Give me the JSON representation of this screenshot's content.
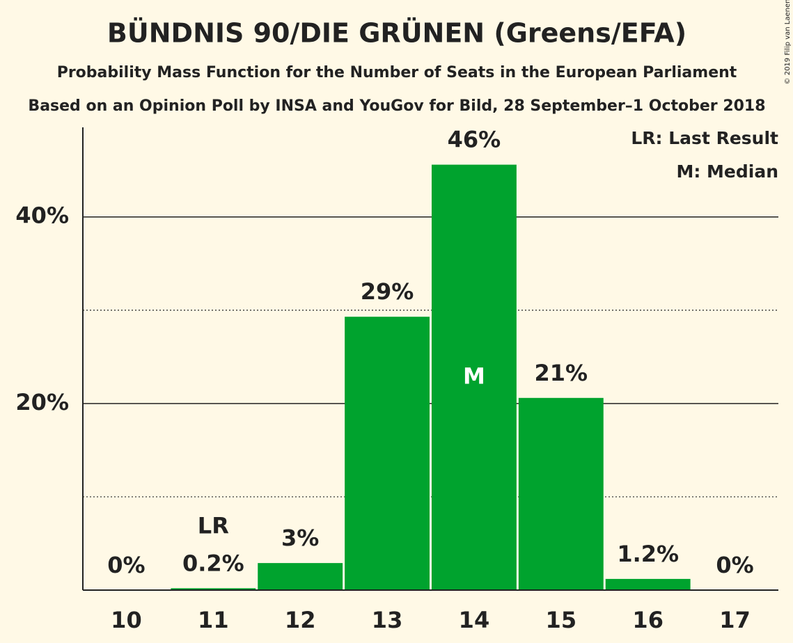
{
  "chart_data": {
    "type": "bar",
    "title": "BÜNDNIS 90/DIE GRÜNEN (Greens/EFA)",
    "subtitle": "Probability Mass Function for the Number of Seats in the European Parliament",
    "subtitle2": "Based on an Opinion Poll by INSA and YouGov for Bild, 28 September–1 October 2018",
    "copyright": "© 2019 Filip van Laenen",
    "categories": [
      "10",
      "11",
      "12",
      "13",
      "14",
      "15",
      "16",
      "17"
    ],
    "values": [
      0,
      0.2,
      2.9,
      29.3,
      45.6,
      20.6,
      1.2,
      0
    ],
    "value_labels": [
      "0%",
      "0.2%",
      "3%",
      "29%",
      "46%",
      "21%",
      "1.2%",
      "0%"
    ],
    "color": "#00a32e",
    "ylim": [
      0,
      49.6
    ],
    "yticks": [
      {
        "value": 20,
        "label": "20%"
      },
      {
        "value": 40,
        "label": "40%"
      }
    ],
    "yminor_ticks": [
      10,
      30
    ],
    "grid": true,
    "last_result": 11,
    "last_result_marker": "LR",
    "median": 14,
    "median_marker": "M",
    "legend": [
      "LR: Last Result",
      "M: Median"
    ],
    "legend_position": "top-right"
  }
}
